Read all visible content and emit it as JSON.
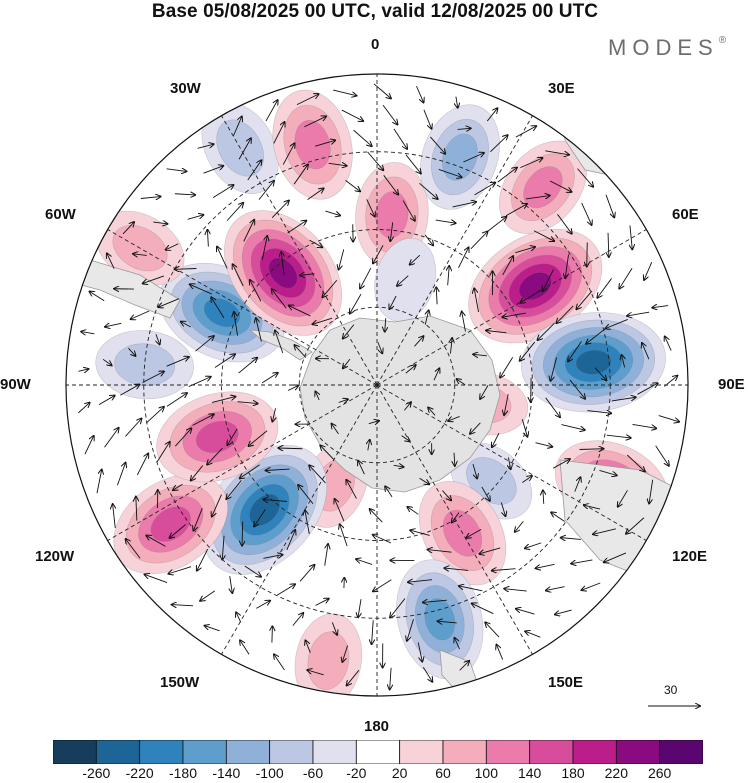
{
  "title": "Base 05/08/2025 00 UTC, valid 12/08/2025 00 UTC",
  "brand": {
    "name": "MODES",
    "mark": "®"
  },
  "longitude_labels": {
    "lon_0": "0",
    "lon_30e": "30E",
    "lon_60e": "60E",
    "lon_90e": "90E",
    "lon_120e": "120E",
    "lon_150e": "150E",
    "lon_180": "180",
    "lon_150w": "150W",
    "lon_120w": "120W",
    "lon_90w": "90W",
    "lon_60w": "60W",
    "lon_30w": "30W"
  },
  "reference_vector": {
    "value": "30"
  },
  "colorbar": {
    "ticks": [
      "-260",
      "-220",
      "-180",
      "-140",
      "-100",
      "-60",
      "-20",
      "20",
      "60",
      "100",
      "140",
      "180",
      "220",
      "260"
    ],
    "colors": [
      "#173d5c",
      "#1d6596",
      "#2f83bd",
      "#5e9ecd",
      "#8fb1d9",
      "#bcc7e3",
      "#e0e0ef",
      "#ffffff",
      "#f7d2d8",
      "#f3adbb",
      "#ea7bab",
      "#d84c9c",
      "#bb1e8a",
      "#8a0a7f",
      "#5a0670"
    ]
  },
  "colors": {
    "land": "#e6e6e6",
    "coast": "#888888",
    "grid": "#222222"
  },
  "anomalies": [
    {
      "lon": 5,
      "r": 0.55,
      "v": 110
    },
    {
      "lon": 20,
      "r": 0.78,
      "v": -120
    },
    {
      "lon": 40,
      "r": 0.83,
      "v": 110
    },
    {
      "lon": 58,
      "r": 0.6,
      "v": 230
    },
    {
      "lon": 84,
      "r": 0.7,
      "v": -230
    },
    {
      "lon": 113,
      "r": 0.82,
      "v": 150
    },
    {
      "lon": 130,
      "r": 0.48,
      "v": -70
    },
    {
      "lon": 150,
      "r": 0.55,
      "v": 130
    },
    {
      "lon": 165,
      "r": 0.78,
      "v": -160
    },
    {
      "lon": 190,
      "r": 0.9,
      "v": 80
    },
    {
      "lon": 203,
      "r": 0.35,
      "v": 60
    },
    {
      "lon": 222,
      "r": 0.54,
      "v": -240
    },
    {
      "lon": 236,
      "r": 0.8,
      "v": 170
    },
    {
      "lon": 252,
      "r": 0.54,
      "v": 170
    },
    {
      "lon": 275,
      "r": 0.75,
      "v": -90
    },
    {
      "lon": 295,
      "r": 0.55,
      "v": -190
    },
    {
      "lon": 300,
      "r": 0.88,
      "v": 80
    },
    {
      "lon": 320,
      "r": 0.47,
      "v": 220
    },
    {
      "lon": 330,
      "r": 0.88,
      "v": -90
    },
    {
      "lon": 345,
      "r": 0.8,
      "v": 130
    },
    {
      "lon": 15,
      "r": 0.35,
      "v": -50
    },
    {
      "lon": 100,
      "r": 0.35,
      "v": 60
    }
  ]
}
